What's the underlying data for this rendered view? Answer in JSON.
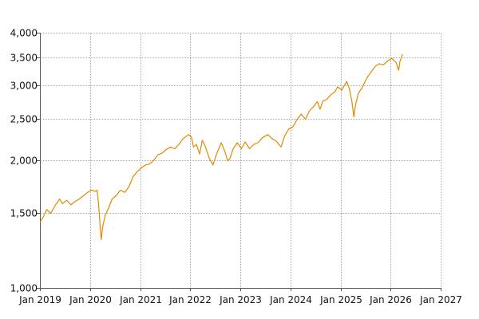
{
  "chart_data": {
    "type": "line",
    "title": "",
    "xlabel": "",
    "ylabel": "",
    "y_scale": "log",
    "ylim": [
      1000,
      4000
    ],
    "xlim": [
      "2019-01-01",
      "2027-01-01"
    ],
    "grid": true,
    "legend": "none",
    "colors": {
      "line": "#e08a00",
      "grid": "#a8a8a8",
      "axis": "#555555"
    },
    "y_ticks": [
      {
        "value": 1000,
        "label": "1,000"
      },
      {
        "value": 1500,
        "label": "1,500"
      },
      {
        "value": 2000,
        "label": "2,000"
      },
      {
        "value": 2500,
        "label": "2,500"
      },
      {
        "value": 3000,
        "label": "3,000"
      },
      {
        "value": 3500,
        "label": "3,500"
      },
      {
        "value": 4000,
        "label": "4,000"
      }
    ],
    "x_ticks": [
      {
        "value": "2019-01-01",
        "label": "Jan 2019"
      },
      {
        "value": "2020-01-01",
        "label": "Jan 2020"
      },
      {
        "value": "2021-01-01",
        "label": "Jan 2021"
      },
      {
        "value": "2022-01-01",
        "label": "Jan 2022"
      },
      {
        "value": "2023-01-01",
        "label": "Jan 2023"
      },
      {
        "value": "2024-01-01",
        "label": "Jan 2024"
      },
      {
        "value": "2025-01-01",
        "label": "Jan 2025"
      },
      {
        "value": "2026-01-01",
        "label": "Jan 2026"
      },
      {
        "value": "2027-01-01",
        "label": "Jan 2027"
      }
    ],
    "series": [
      {
        "points": [
          [
            "2019-01-03",
            1430
          ],
          [
            "2019-01-25",
            1470
          ],
          [
            "2019-02-20",
            1530
          ],
          [
            "2019-03-20",
            1500
          ],
          [
            "2019-04-25",
            1570
          ],
          [
            "2019-05-25",
            1620
          ],
          [
            "2019-06-15",
            1580
          ],
          [
            "2019-07-15",
            1610
          ],
          [
            "2019-08-15",
            1570
          ],
          [
            "2019-09-15",
            1600
          ],
          [
            "2019-10-15",
            1620
          ],
          [
            "2019-11-15",
            1650
          ],
          [
            "2019-12-15",
            1680
          ],
          [
            "2020-01-10",
            1700
          ],
          [
            "2020-02-10",
            1690
          ],
          [
            "2020-02-22",
            1700
          ],
          [
            "2020-03-05",
            1560
          ],
          [
            "2020-03-15",
            1400
          ],
          [
            "2020-03-23",
            1300
          ],
          [
            "2020-04-02",
            1390
          ],
          [
            "2020-04-20",
            1480
          ],
          [
            "2020-05-15",
            1540
          ],
          [
            "2020-06-10",
            1620
          ],
          [
            "2020-07-10",
            1650
          ],
          [
            "2020-08-10",
            1700
          ],
          [
            "2020-09-10",
            1680
          ],
          [
            "2020-10-10",
            1730
          ],
          [
            "2020-11-10",
            1830
          ],
          [
            "2020-12-10",
            1880
          ],
          [
            "2021-01-10",
            1920
          ],
          [
            "2021-02-10",
            1950
          ],
          [
            "2021-03-10",
            1960
          ],
          [
            "2021-04-10",
            2000
          ],
          [
            "2021-05-10",
            2060
          ],
          [
            "2021-06-10",
            2080
          ],
          [
            "2021-07-10",
            2120
          ],
          [
            "2021-08-10",
            2150
          ],
          [
            "2021-09-10",
            2130
          ],
          [
            "2021-10-10",
            2180
          ],
          [
            "2021-11-10",
            2250
          ],
          [
            "2021-12-20",
            2300
          ],
          [
            "2022-01-10",
            2270
          ],
          [
            "2022-01-25",
            2150
          ],
          [
            "2022-02-15",
            2180
          ],
          [
            "2022-03-10",
            2070
          ],
          [
            "2022-03-30",
            2230
          ],
          [
            "2022-04-20",
            2160
          ],
          [
            "2022-05-20",
            2020
          ],
          [
            "2022-06-16",
            1950
          ],
          [
            "2022-07-10",
            2060
          ],
          [
            "2022-08-15",
            2200
          ],
          [
            "2022-09-10",
            2100
          ],
          [
            "2022-09-30",
            2000
          ],
          [
            "2022-10-15",
            2010
          ],
          [
            "2022-11-10",
            2130
          ],
          [
            "2022-12-10",
            2200
          ],
          [
            "2023-01-10",
            2130
          ],
          [
            "2023-02-05",
            2210
          ],
          [
            "2023-03-10",
            2130
          ],
          [
            "2023-04-10",
            2180
          ],
          [
            "2023-05-10",
            2200
          ],
          [
            "2023-06-10",
            2260
          ],
          [
            "2023-07-20",
            2300
          ],
          [
            "2023-08-20",
            2250
          ],
          [
            "2023-09-20",
            2220
          ],
          [
            "2023-10-25",
            2150
          ],
          [
            "2023-11-20",
            2280
          ],
          [
            "2023-12-20",
            2370
          ],
          [
            "2024-01-20",
            2400
          ],
          [
            "2024-02-20",
            2500
          ],
          [
            "2024-03-20",
            2570
          ],
          [
            "2024-04-20",
            2500
          ],
          [
            "2024-05-20",
            2620
          ],
          [
            "2024-06-20",
            2680
          ],
          [
            "2024-07-15",
            2750
          ],
          [
            "2024-08-05",
            2640
          ],
          [
            "2024-08-25",
            2760
          ],
          [
            "2024-09-20",
            2780
          ],
          [
            "2024-10-20",
            2850
          ],
          [
            "2024-11-20",
            2900
          ],
          [
            "2024-12-10",
            2980
          ],
          [
            "2025-01-10",
            2930
          ],
          [
            "2025-02-15",
            3070
          ],
          [
            "2025-03-05",
            2960
          ],
          [
            "2025-03-25",
            2750
          ],
          [
            "2025-04-08",
            2530
          ],
          [
            "2025-04-20",
            2700
          ],
          [
            "2025-05-10",
            2870
          ],
          [
            "2025-06-10",
            2980
          ],
          [
            "2025-07-10",
            3120
          ],
          [
            "2025-08-10",
            3230
          ],
          [
            "2025-09-10",
            3330
          ],
          [
            "2025-10-10",
            3380
          ],
          [
            "2025-11-10",
            3360
          ],
          [
            "2025-12-10",
            3430
          ],
          [
            "2026-01-10",
            3480
          ],
          [
            "2026-02-10",
            3400
          ],
          [
            "2026-02-28",
            3260
          ],
          [
            "2026-03-10",
            3420
          ],
          [
            "2026-03-28",
            3560
          ]
        ]
      }
    ]
  }
}
